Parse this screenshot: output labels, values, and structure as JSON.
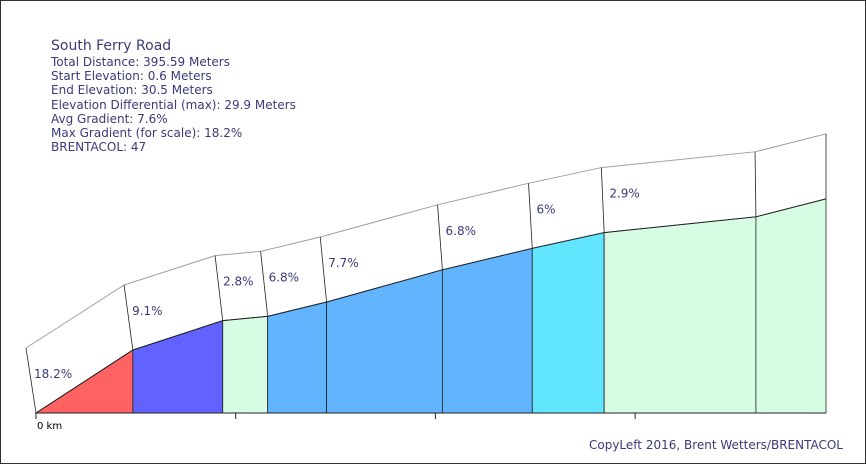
{
  "chart_data": {
    "type": "area",
    "title": "South Ferry Road",
    "stats": [
      "Total Distance: 395.59 Meters",
      "Start Elevation: 0.6 Meters",
      "End Elevation: 30.5 Meters",
      "Elevation Differential (max): 29.9 Meters",
      "Avg Gradient: 7.6%",
      "Max Gradient (for scale): 18.2%",
      "BRENTACOL: 47"
    ],
    "x_unit": "m",
    "x_tick_label": "0 km",
    "elevation_points": [
      {
        "x": 0,
        "y": 0.6
      },
      {
        "x": 48.5,
        "y": 9.4
      },
      {
        "x": 93.5,
        "y": 13.5
      },
      {
        "x": 116.0,
        "y": 14.1
      },
      {
        "x": 145.5,
        "y": 16.1
      },
      {
        "x": 203.5,
        "y": 20.6
      },
      {
        "x": 248.5,
        "y": 23.6
      },
      {
        "x": 284.5,
        "y": 25.8
      },
      {
        "x": 360.5,
        "y": 28.0
      },
      {
        "x": 395.59,
        "y": 30.5
      }
    ],
    "segments": [
      {
        "label": "18.2%",
        "color": "#ff6262"
      },
      {
        "label": "9.1%",
        "color": "#6262ff"
      },
      {
        "label": "2.8%",
        "color": "#d6fde4"
      },
      {
        "label": "6.8%",
        "color": "#62b4ff"
      },
      {
        "label": "7.7%",
        "color": "#62b4ff"
      },
      {
        "label": "6.8%",
        "color": "#62b4ff"
      },
      {
        "label": "6%",
        "color": "#62e6ff"
      },
      {
        "label": "2.9%",
        "color": "#d6fde4"
      },
      {
        "label": "",
        "color": "#d6fde4"
      }
    ],
    "credit": "CopyLeft 2016, Brent Wetters/BRENTACOL"
  }
}
